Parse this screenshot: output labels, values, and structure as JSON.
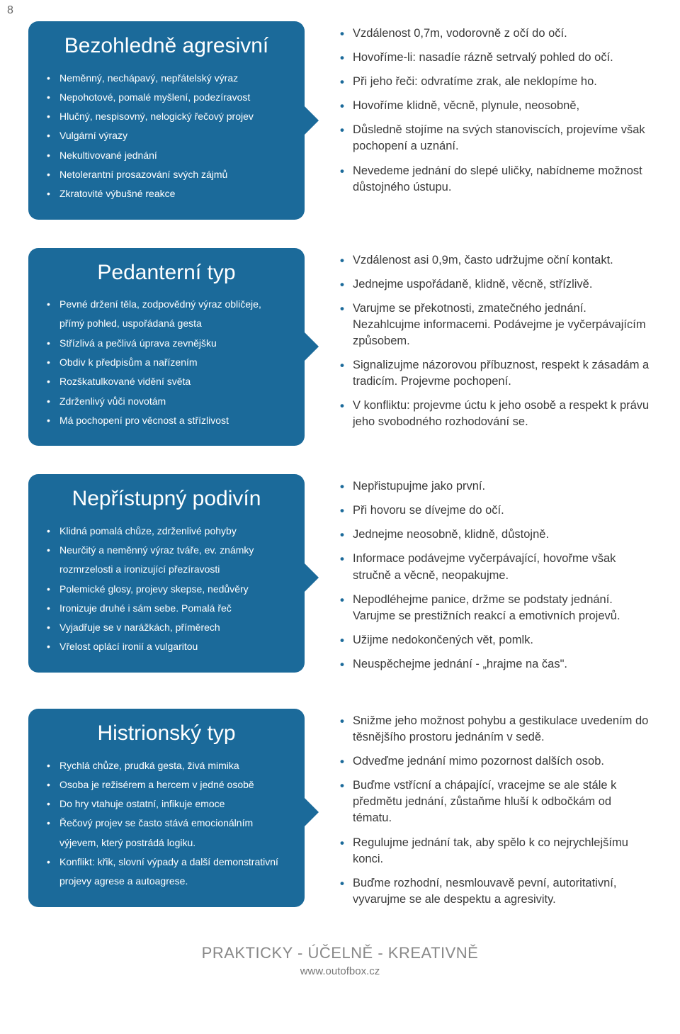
{
  "page_number": "8",
  "sections": [
    {
      "title": "Bezohledně agresivní",
      "traits": [
        "Neměnný, nechápavý, nepřátelský výraz",
        "Nepohotové, pomalé myšlení, podezíravost",
        "Hlučný, nespisovný, nelogický řečový projev",
        "Vulgární výrazy",
        "Nekultivované jednání",
        "Netolerantní prosazování svých zájmů",
        "Zkratovité výbušné reakce"
      ],
      "tips": [
        "Vzdálenost 0,7m, vodorovně z očí do očí.",
        "Hovoříme-li: nasadíe rázně setrvalý pohled do očí.",
        "Při jeho řeči: odvratíme zrak, ale neklopíme ho.",
        "Hovoříme klidně, věcně, plynule, neosobně,",
        "Důsledně stojíme na svých stanoviscích, projevíme však pochopení a uznání.",
        "Nevedeme jednání do slepé uličky, nabídneme možnost důstojného ústupu."
      ]
    },
    {
      "title": "Pedanterní typ",
      "traits": [
        "Pevné držení těla, zodpovědný výraz obličeje, přímý pohled, uspořádaná gesta",
        "Střízlivá a pečlivá úprava zevnějšku",
        "Obdiv k předpisům a nařízením",
        "Rozškatulkované vidění světa",
        "Zdrženlivý vůči novotám",
        "Má pochopení pro věcnost a střízlivost"
      ],
      "tips": [
        "Vzdálenost asi 0,9m, často udržujme oční kontakt.",
        "Jednejme uspořádaně, klidně, věcně, střízlivě.",
        "Varujme se překotnosti, zmatečného jednání. Nezahlcujme informacemi. Podávejme je vyčerpávajícím způsobem.",
        "Signalizujme názorovou příbuznost, respekt k zásadám a tradicím. Projevme pochopení.",
        "V konfliktu: projevme úctu k jeho osobě a respekt k právu jeho svobodného rozhodování se."
      ]
    },
    {
      "title": "Nepřístupný podivín",
      "traits": [
        "Klidná pomalá chůze, zdrženlivé pohyby",
        "Neurčitý a neměnný výraz tváře, ev. známky rozmrzelosti a ironizující přezíravosti",
        "Polemické glosy, projevy skepse, nedůvěry",
        "Ironizuje druhé i sám sebe. Pomalá řeč",
        "Vyjadřuje se v narážkách, příměrech",
        "Vřelost oplácí ironií a vulgaritou"
      ],
      "tips": [
        "Nepřistupujme jako první.",
        "Při hovoru se dívejme do očí.",
        "Jednejme neosobně, klidně, důstojně.",
        "Informace podávejme vyčerpávající, hovořme však stručně a věcně, neopakujme.",
        "Nepodléhejme panice, držme se podstaty jednání. Varujme se prestižních reakcí a emotivních projevů.",
        "Užijme nedokončených vět, pomlk.",
        "Neuspěchejme jednání - „hrajme na čas\"."
      ]
    },
    {
      "title": "Histrionský typ",
      "traits": [
        "Rychlá chůze, prudká gesta, živá mimika",
        "Osoba je režisérem a hercem v jedné osobě",
        "Do hry vtahuje ostatní, infikuje emoce",
        "Řečový projev se často stává emocionálním výjevem, který postrádá logiku.",
        "Konflikt: křik, slovní výpady a další demonstrativní projevy agrese a autoagrese."
      ],
      "tips": [
        "Snižme jeho možnost pohybu a gestikulace uvedením do těsnějšího prostoru jednáním v sedě.",
        "Odveďme jednání mimo pozornost dalších osob.",
        "Buďme vstřícní a chápající, vracejme se ale stále k předmětu jednání, zůstaňme hluší k odbočkám od tématu.",
        "Regulujme jednání tak, aby spělo k co nejrychlejšímu konci.",
        "Buďme rozhodní, nesmlouvavě pevní, autoritativní, vyvarujme se ale despektu a agresivity."
      ]
    }
  ],
  "footer": {
    "tagline": "PRAKTICKY - ÚČELNĚ - KREATIVNĚ",
    "url": "www.outofbox.cz"
  },
  "colors": {
    "card_bg": "#1b6a9a",
    "bullet_tip": "#1b6a9a",
    "text": "#3a3a3a",
    "footer": "#888"
  }
}
